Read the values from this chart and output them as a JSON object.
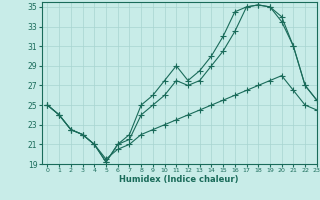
{
  "xlabel": "Humidex (Indice chaleur)",
  "xlim": [
    -0.5,
    23
  ],
  "ylim": [
    19,
    35.5
  ],
  "background_color": "#c8ece8",
  "line_color": "#1a6b5a",
  "grid_color": "#a8d4d0",
  "line1_x": [
    0,
    1,
    2,
    3,
    4,
    5,
    6,
    7,
    8,
    9,
    10,
    11,
    12,
    13,
    14,
    15,
    16,
    17,
    18,
    19,
    20,
    21,
    22,
    23
  ],
  "line1_y": [
    25.0,
    24.0,
    22.5,
    22.0,
    21.0,
    19.2,
    21.0,
    22.0,
    25.0,
    26.0,
    27.5,
    29.0,
    27.5,
    28.5,
    30.0,
    32.0,
    34.5,
    35.0,
    35.2,
    35.0,
    34.0,
    31.0,
    27.0,
    25.5
  ],
  "line2_x": [
    0,
    1,
    2,
    3,
    4,
    5,
    6,
    7,
    8,
    9,
    10,
    11,
    12,
    13,
    14,
    15,
    16,
    17,
    18,
    19,
    20,
    21,
    22,
    23
  ],
  "line2_y": [
    25.0,
    24.0,
    22.5,
    22.0,
    21.0,
    19.2,
    21.0,
    21.5,
    24.0,
    25.0,
    26.0,
    27.5,
    27.0,
    27.5,
    29.0,
    30.5,
    32.5,
    35.0,
    35.2,
    35.0,
    33.5,
    31.0,
    27.0,
    25.5
  ],
  "line3_x": [
    0,
    1,
    2,
    3,
    4,
    5,
    6,
    7,
    8,
    9,
    10,
    11,
    12,
    13,
    14,
    15,
    16,
    17,
    18,
    19,
    20,
    21,
    22,
    23
  ],
  "line3_y": [
    25.0,
    24.0,
    22.5,
    22.0,
    21.0,
    19.5,
    20.5,
    21.0,
    22.0,
    22.5,
    23.0,
    23.5,
    24.0,
    24.5,
    25.0,
    25.5,
    26.0,
    26.5,
    27.0,
    27.5,
    28.0,
    26.5,
    25.0,
    24.5
  ],
  "xticks": [
    0,
    1,
    2,
    3,
    4,
    5,
    6,
    7,
    8,
    9,
    10,
    11,
    12,
    13,
    14,
    15,
    16,
    17,
    18,
    19,
    20,
    21,
    22,
    23
  ],
  "yticks": [
    19,
    21,
    23,
    25,
    27,
    29,
    31,
    33,
    35
  ]
}
